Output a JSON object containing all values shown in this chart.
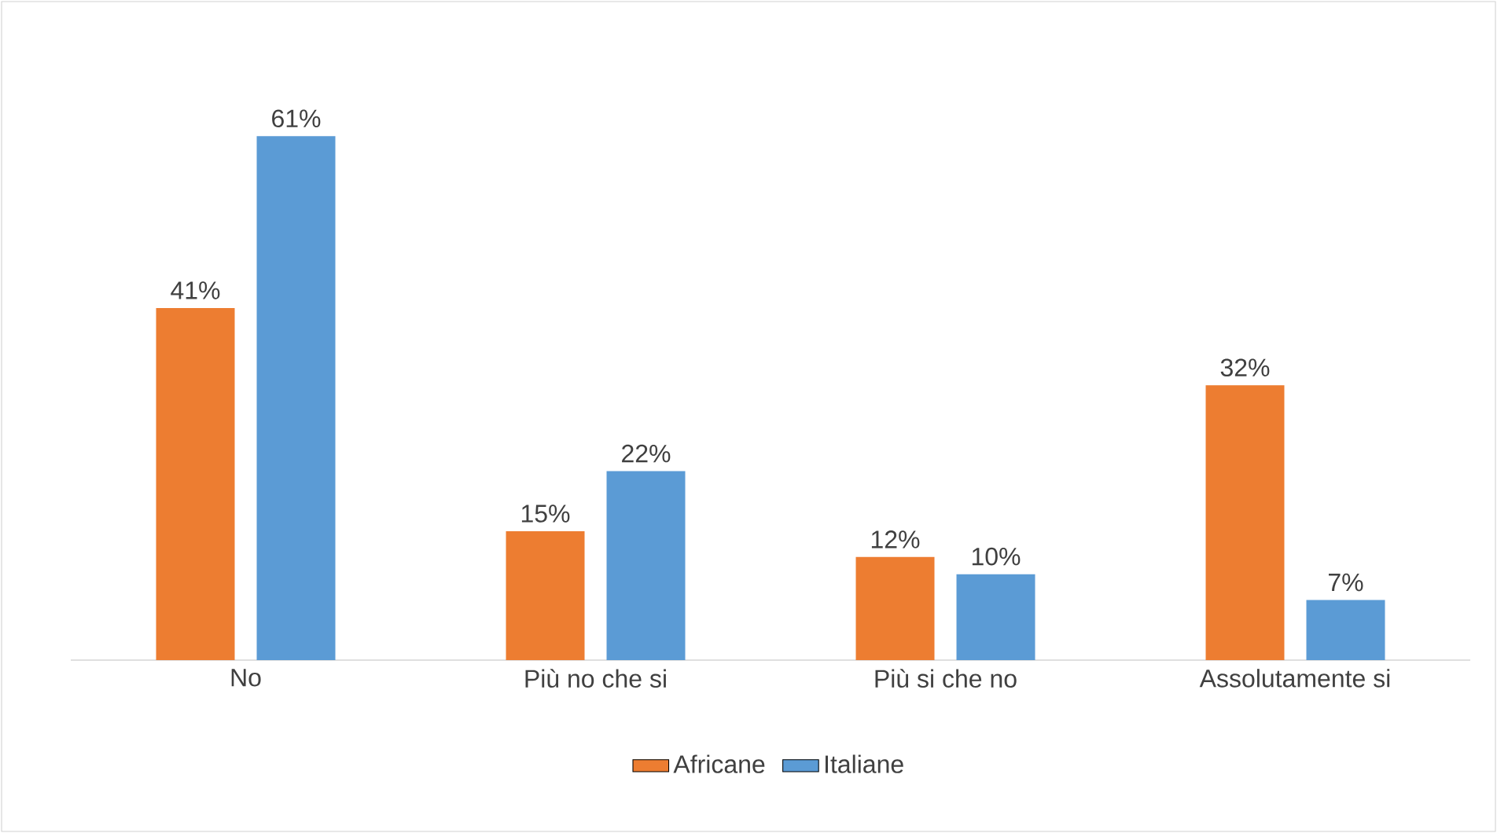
{
  "chart_data": {
    "type": "bar",
    "categories": [
      "No",
      "Più no che si",
      "Più si che no",
      "Assolutamente si"
    ],
    "series": [
      {
        "name": "Africane",
        "color": "#ed7d31",
        "values": [
          41,
          15,
          12,
          32
        ],
        "value_labels": [
          "41%",
          "15%",
          "12%",
          "32%"
        ]
      },
      {
        "name": "Italiane",
        "color": "#5b9bd5",
        "values": [
          61,
          22,
          10,
          7
        ],
        "value_labels": [
          "61%",
          "22%",
          "10%",
          "7%"
        ]
      }
    ],
    "legend": "bottom"
  }
}
